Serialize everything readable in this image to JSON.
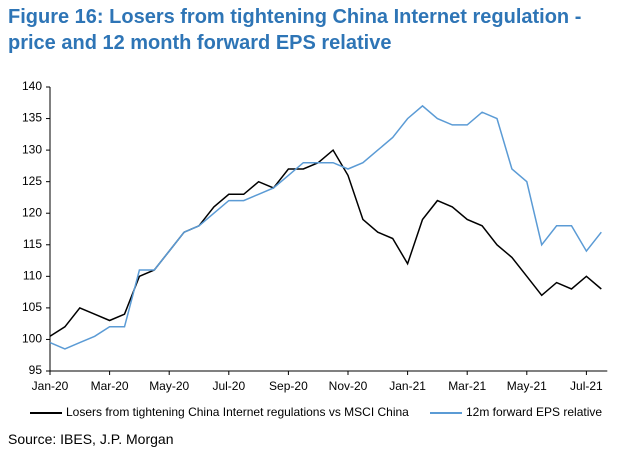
{
  "chart_data": {
    "type": "line",
    "title": "Figure 16: Losers from tightening China Internet regulation - price and 12 month forward EPS relative",
    "source": "Source: IBES, J.P. Morgan",
    "categories": [
      "Jan-20",
      null,
      null,
      null,
      "Mar-20",
      null,
      null,
      null,
      "May-20",
      null,
      null,
      null,
      "Jul-20",
      null,
      null,
      null,
      "Sep-20",
      null,
      null,
      null,
      "Nov-20",
      null,
      null,
      null,
      "Jan-21",
      null,
      null,
      null,
      "Mar-21",
      null,
      null,
      null,
      "May-21",
      null,
      null,
      null,
      "Jul-21",
      null
    ],
    "series": [
      {
        "name": "Losers from tightening China Internet regulations vs MSCI China",
        "color": "#000000",
        "values": [
          100.5,
          102,
          105,
          104,
          103,
          104,
          110,
          111,
          114,
          117,
          118,
          121,
          123,
          123,
          125,
          124,
          127,
          127,
          128,
          130,
          126,
          119,
          117,
          116,
          112,
          119,
          122,
          121,
          119,
          118,
          115,
          113,
          110,
          107,
          109,
          108,
          110,
          108
        ]
      },
      {
        "name": "12m forward EPS relative",
        "color": "#5b9bd5",
        "values": [
          99.5,
          98.5,
          99.5,
          100.5,
          102,
          102,
          111,
          111,
          114,
          117,
          118,
          120,
          122,
          122,
          123,
          124,
          126,
          128,
          128,
          128,
          127,
          128,
          130,
          132,
          135,
          137,
          135,
          134,
          134,
          136,
          135,
          127,
          125,
          115,
          118,
          118,
          114,
          117
        ]
      }
    ],
    "ylim": [
      95,
      140
    ],
    "yticks": [
      95,
      100,
      105,
      110,
      115,
      120,
      125,
      130,
      135,
      140
    ],
    "legend": "bottom"
  }
}
